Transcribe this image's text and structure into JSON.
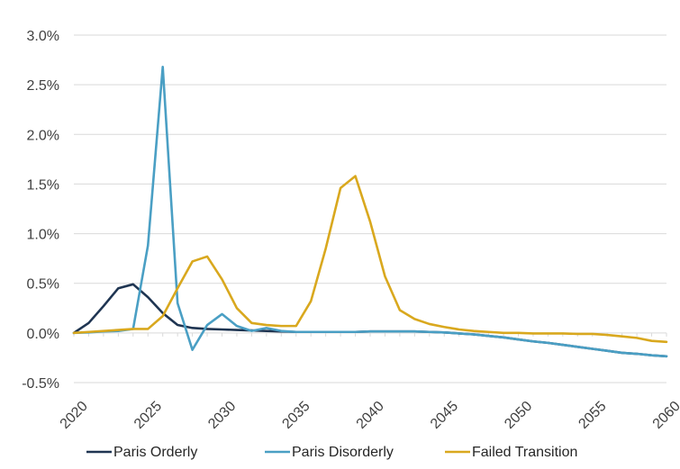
{
  "chart_data": {
    "type": "line",
    "title": "",
    "xlabel": "",
    "ylabel": "",
    "xlim": [
      2020,
      2060
    ],
    "ylim": [
      -0.5,
      3.0
    ],
    "grid": "horizontal",
    "legend_position": "bottom",
    "x_ticks": [
      "2020",
      "2025",
      "2030",
      "2035",
      "2040",
      "2045",
      "2050",
      "2055",
      "2060"
    ],
    "y_ticks": [
      "-0.5%",
      "0.0%",
      "0.5%",
      "1.0%",
      "1.5%",
      "2.0%",
      "2.5%",
      "3.0%"
    ],
    "x": [
      2020,
      2021,
      2022,
      2023,
      2024,
      2025,
      2026,
      2027,
      2028,
      2029,
      2030,
      2031,
      2032,
      2033,
      2034,
      2035,
      2036,
      2037,
      2038,
      2039,
      2040,
      2041,
      2042,
      2043,
      2044,
      2045,
      2046,
      2047,
      2048,
      2049,
      2050,
      2051,
      2052,
      2053,
      2054,
      2055,
      2056,
      2057,
      2058,
      2059,
      2060
    ],
    "series": [
      {
        "name": "Paris Orderly",
        "color": "#1f3552",
        "values": [
          0.0,
          0.1,
          0.27,
          0.45,
          0.49,
          0.36,
          0.2,
          0.08,
          0.05,
          0.04,
          0.035,
          0.03,
          0.025,
          0.02,
          0.015,
          0.01,
          0.01,
          0.01,
          0.01,
          0.01,
          0.015,
          0.015,
          0.015,
          0.015,
          0.01,
          0.005,
          -0.005,
          -0.015,
          -0.03,
          -0.045,
          -0.065,
          -0.085,
          -0.1,
          -0.12,
          -0.14,
          -0.16,
          -0.18,
          -0.2,
          -0.21,
          -0.225,
          -0.235
        ]
      },
      {
        "name": "Paris Disorderly",
        "color": "#4a9fc4",
        "values": [
          0.0,
          0.005,
          0.015,
          0.02,
          0.04,
          0.88,
          2.68,
          0.3,
          -0.17,
          0.08,
          0.19,
          0.07,
          0.02,
          0.05,
          0.02,
          0.01,
          0.01,
          0.01,
          0.01,
          0.01,
          0.015,
          0.015,
          0.015,
          0.015,
          0.01,
          0.005,
          -0.005,
          -0.015,
          -0.03,
          -0.045,
          -0.065,
          -0.085,
          -0.1,
          -0.12,
          -0.14,
          -0.16,
          -0.18,
          -0.2,
          -0.21,
          -0.225,
          -0.235
        ]
      },
      {
        "name": "Failed Transition",
        "color": "#d9a81e",
        "values": [
          0.0,
          0.01,
          0.02,
          0.03,
          0.04,
          0.04,
          0.17,
          0.45,
          0.72,
          0.77,
          0.54,
          0.25,
          0.1,
          0.08,
          0.07,
          0.07,
          0.32,
          0.85,
          1.46,
          1.58,
          1.12,
          0.57,
          0.23,
          0.14,
          0.09,
          0.06,
          0.035,
          0.02,
          0.01,
          0.0,
          0.0,
          -0.005,
          -0.005,
          -0.005,
          -0.01,
          -0.01,
          -0.02,
          -0.035,
          -0.05,
          -0.08,
          -0.09
        ]
      }
    ]
  }
}
